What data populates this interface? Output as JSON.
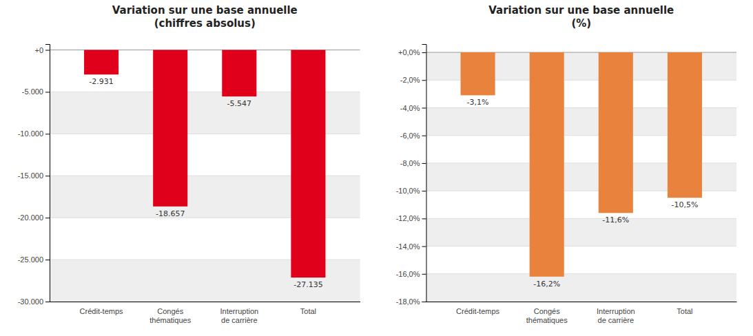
{
  "chart_data": [
    {
      "type": "bar",
      "title": "Variation sur une base annuelle\n(chiffres absolus)",
      "categories": [
        "Crédit-temps",
        "Congés\nthématiques",
        "Interruption\nde carrière",
        "Total"
      ],
      "values": [
        -2931,
        -18657,
        -5547,
        -27135
      ],
      "value_labels": [
        "-2.931",
        "-18.657",
        "-5.547",
        "-27.135"
      ],
      "data_labels": true,
      "color": "#E0001C",
      "ylim": [
        -30000,
        700
      ],
      "yticks": [
        {
          "value": 0,
          "label": "+0"
        },
        {
          "value": -5000,
          "label": "-5.000"
        },
        {
          "value": -10000,
          "label": "-10.000"
        },
        {
          "value": -15000,
          "label": "-15.000"
        },
        {
          "value": -20000,
          "label": "-20.000"
        },
        {
          "value": -25000,
          "label": "-25.000"
        },
        {
          "value": -30000,
          "label": "-30.000"
        }
      ],
      "grid": true
    },
    {
      "type": "bar",
      "title": "Variation sur une base annuelle\n(%)",
      "categories": [
        "Crédit-temps",
        "Congés\nthématiques",
        "Interruption\nde carrière",
        "Total"
      ],
      "values": [
        -3.1,
        -16.2,
        -11.6,
        -10.5
      ],
      "value_labels": [
        "-3,1%",
        "-16,2%",
        "-11,6%",
        "-10,5%"
      ],
      "data_labels": true,
      "color": "#E8823C",
      "ylim": [
        -18.0,
        0.6
      ],
      "yticks": [
        {
          "value": 0.0,
          "label": "+0,0%"
        },
        {
          "value": -2.0,
          "label": "-2,0%"
        },
        {
          "value": -4.0,
          "label": "-4,0%"
        },
        {
          "value": -6.0,
          "label": "-6,0%"
        },
        {
          "value": -8.0,
          "label": "-8,0%"
        },
        {
          "value": -10.0,
          "label": "-10,0%"
        },
        {
          "value": -12.0,
          "label": "-12,0%"
        },
        {
          "value": -14.0,
          "label": "-14,0%"
        },
        {
          "value": -16.0,
          "label": "-16,0%"
        },
        {
          "value": -18.0,
          "label": "-18,0%"
        }
      ],
      "grid": true
    }
  ]
}
